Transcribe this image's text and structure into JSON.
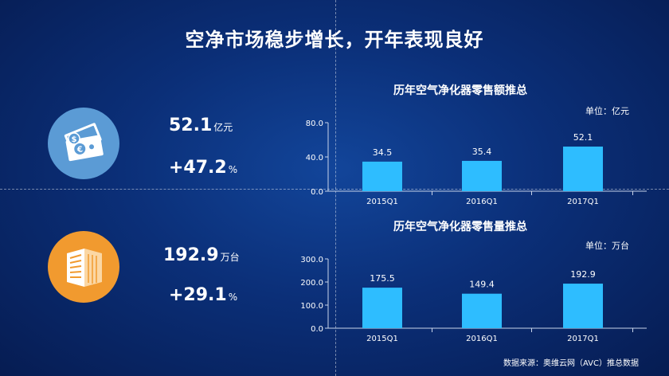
{
  "title": "空净市场稳步增长，开年表现良好",
  "metrics": [
    {
      "value": "52.1",
      "unit": "亿元",
      "growth": "+47.2",
      "growth_unit": "%"
    },
    {
      "value": "192.9",
      "unit": "万台",
      "growth": "+29.1",
      "growth_unit": "%"
    }
  ],
  "charts": [
    {
      "title": "历年空气净化器零售额推总",
      "unit_label": "单位：亿元"
    },
    {
      "title": "历年空气净化器零售量推总",
      "unit_label": "单位：万台"
    }
  ],
  "chart_data": [
    {
      "type": "bar",
      "title": "历年空气净化器零售额推总",
      "categories": [
        "2015Q1",
        "2016Q1",
        "2017Q1"
      ],
      "values": [
        34.5,
        35.4,
        52.1
      ],
      "value_labels": [
        "34.5",
        "35.4",
        "52.1"
      ],
      "yticks": [
        "0.0",
        "40.0",
        "80.0"
      ],
      "ylim": [
        0,
        80
      ],
      "unit": "单位：亿元",
      "bar_color": "#2ebdff",
      "grid": false
    },
    {
      "type": "bar",
      "title": "历年空气净化器零售量推总",
      "categories": [
        "2015Q1",
        "2016Q1",
        "2017Q1"
      ],
      "values": [
        175.5,
        149.4,
        192.9
      ],
      "value_labels": [
        "175.5",
        "149.4",
        "192.9"
      ],
      "yticks": [
        "0.0",
        "100.0",
        "200.0",
        "300.0"
      ],
      "ylim": [
        0,
        300
      ],
      "unit": "单位：万台",
      "bar_color": "#2ebdff",
      "grid": false
    }
  ],
  "source": "数据来源：奥维云网（AVC）推总数据",
  "icons": [
    "money-icon",
    "server-icon"
  ]
}
